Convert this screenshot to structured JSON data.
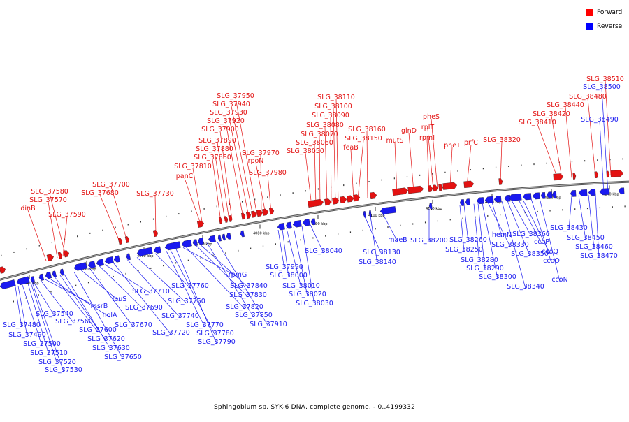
{
  "legend": [
    {
      "label": "Forward",
      "color": "#ff0000"
    },
    {
      "label": "Reverse",
      "color": "#0000ff"
    }
  ],
  "caption": "Sphingobium sp. SYK-6 DNA, complete genome. - 0..4199332",
  "colors": {
    "forward": "#e31212",
    "reverse": "#1a1af0",
    "backbone": "#999999"
  },
  "ticks": [
    "4040 kbp",
    "4050 kbp",
    "4060 kbp",
    "4070 kbp",
    "4080 kbp",
    "4090 kbp",
    "4100 kbp",
    "4110 kbp",
    "4120 kbp",
    "4130 kbp",
    "4140 kbp"
  ],
  "forward_labels": [
    "dinB",
    "SLG_37590",
    "SLG_37570",
    "SLG_37580",
    "SLG_37680",
    "SLG_37700",
    "SLG_37730",
    "panC",
    "SLG_37810",
    "SLG_37860",
    "SLG_37880",
    "SLG_37890",
    "SLG_37900",
    "SLG_37920",
    "SLG_37930",
    "SLG_37940",
    "SLG_37950",
    "SLG_37970",
    "rpoN",
    "SLG_37980",
    "SLG_38050",
    "SLG_38060",
    "SLG_38070",
    "SLG_38080",
    "SLG_38090",
    "SLG_38100",
    "SLG_38110",
    "feaB",
    "SLG_38150",
    "SLG_38160",
    "mutS",
    "glnD",
    "rpmI",
    "rplT",
    "pheS",
    "pheT",
    "prfC",
    "SLG_38320",
    "SLG_38410",
    "SLG_38420",
    "SLG_38440",
    "SLG_38480",
    "SLG_38510"
  ],
  "reverse_labels": [
    "SLG_37480",
    "SLG_37490",
    "SLG_37500",
    "SLG_37510",
    "SLG_37520",
    "SLG_37530",
    "SLG_37540",
    "SLG_37560",
    "msrB",
    "holA",
    "SLG_37600",
    "SLG_37620",
    "SLG_37630",
    "SLG_37650",
    "leuS",
    "SLG_37670",
    "SLG_37690",
    "SLG_37710",
    "SLG_37720",
    "SLG_37740",
    "SLG_37750",
    "SLG_37760",
    "SLG_37770",
    "SLG_37780",
    "SLG_37790",
    "rpmG",
    "SLG_37820",
    "SLG_37830",
    "SLG_37840",
    "SLG_37850",
    "SLG_37910",
    "SLG_37990",
    "SLG_38000",
    "SLG_38010",
    "SLG_38020",
    "SLG_38030",
    "SLG_38040",
    "SLG_38130",
    "SLG_38140",
    "maeB",
    "SLG_38200",
    "SLG_38250",
    "SLG_38260",
    "SLG_38280",
    "SLG_38290",
    "SLG_38300",
    "SLG_38330",
    "hemN",
    "SLG_38340",
    "SLG_38350",
    "SLG_38360",
    "ccoP",
    "ccoQ",
    "ccoO",
    "ccoN",
    "SLG_38430",
    "SLG_38450",
    "SLG_38460",
    "SLG_38470",
    "SLG_38490",
    "SLG_38500"
  ]
}
